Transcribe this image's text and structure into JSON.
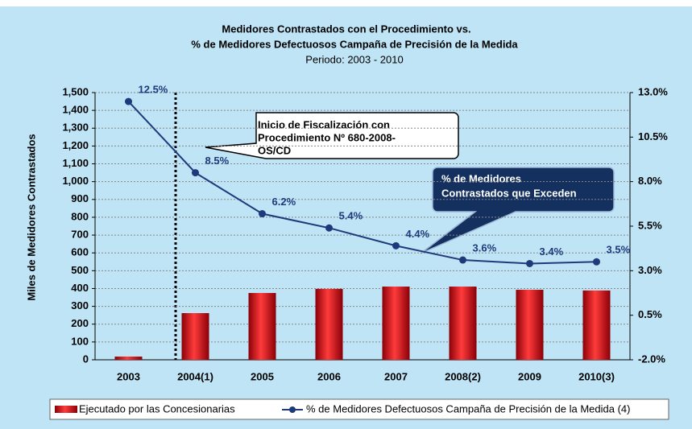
{
  "chart_data": {
    "type": "bar-line",
    "title": "Medidores Contrastados con el Procedimiento vs.",
    "subtitle": "% de Medidores Defectuosos Campaña de Precisión de la Medida",
    "period": "Periodo: 2003 - 2010",
    "y_label": "Miles de Medidores Contrastados",
    "categories": [
      "2003",
      "2004(1)",
      "2005",
      "2006",
      "2007",
      "2008(2)",
      "2009",
      "2010(3)"
    ],
    "series": [
      {
        "name": "Ejecutado por las Concesionarias",
        "color": "#c8101a",
        "values": [
          18,
          262,
          375,
          398,
          411,
          411,
          393,
          389
        ]
      },
      {
        "name": "% de Medidores Defectuosos Campaña de Precisión de la Medida (4)",
        "color": "#1f3a7a",
        "axis": "y2",
        "values": [
          12.5,
          8.5,
          6.2,
          5.4,
          4.4,
          3.6,
          3.4,
          3.5
        ],
        "value_labels": [
          "12.5%",
          "8.5%",
          "6.2%",
          "5.4%",
          "4.4%",
          "3.6%",
          "3.4%",
          "3.5%"
        ]
      }
    ],
    "ylim": [
      0,
      1500
    ],
    "yticks": [
      0,
      100,
      200,
      300,
      400,
      500,
      600,
      700,
      800,
      900,
      {
        "value": 1000,
        "label": "1,000"
      },
      {
        "value": 1100,
        "label": "1,100"
      },
      {
        "value": 1200,
        "label": "1,200"
      },
      {
        "value": 1300,
        "label": "1,300"
      },
      {
        "value": 1400,
        "label": "1,400"
      },
      {
        "value": 1500,
        "label": "1,500"
      }
    ],
    "y2lim": [
      -2,
      13
    ],
    "y2ticks": [
      {
        "value": -2,
        "label": "-2.0%"
      },
      {
        "value": 0.5,
        "label": "0.5%"
      },
      {
        "value": 3,
        "label": "3.0%"
      },
      {
        "value": 5.5,
        "label": "5.5%"
      },
      {
        "value": 8,
        "label": "8.0%"
      },
      {
        "value": 10.5,
        "label": "10.5%"
      },
      {
        "value": 13,
        "label": "13.0%"
      }
    ],
    "grid": true,
    "annotations": [
      {
        "lines": [
          "Inicio de Fiscalización con",
          "Procedimiento Nº 680-2008-",
          "OS/CD"
        ]
      },
      {
        "lines": [
          "% de Medidores",
          "Contrastados que  Exceden"
        ]
      }
    ]
  }
}
